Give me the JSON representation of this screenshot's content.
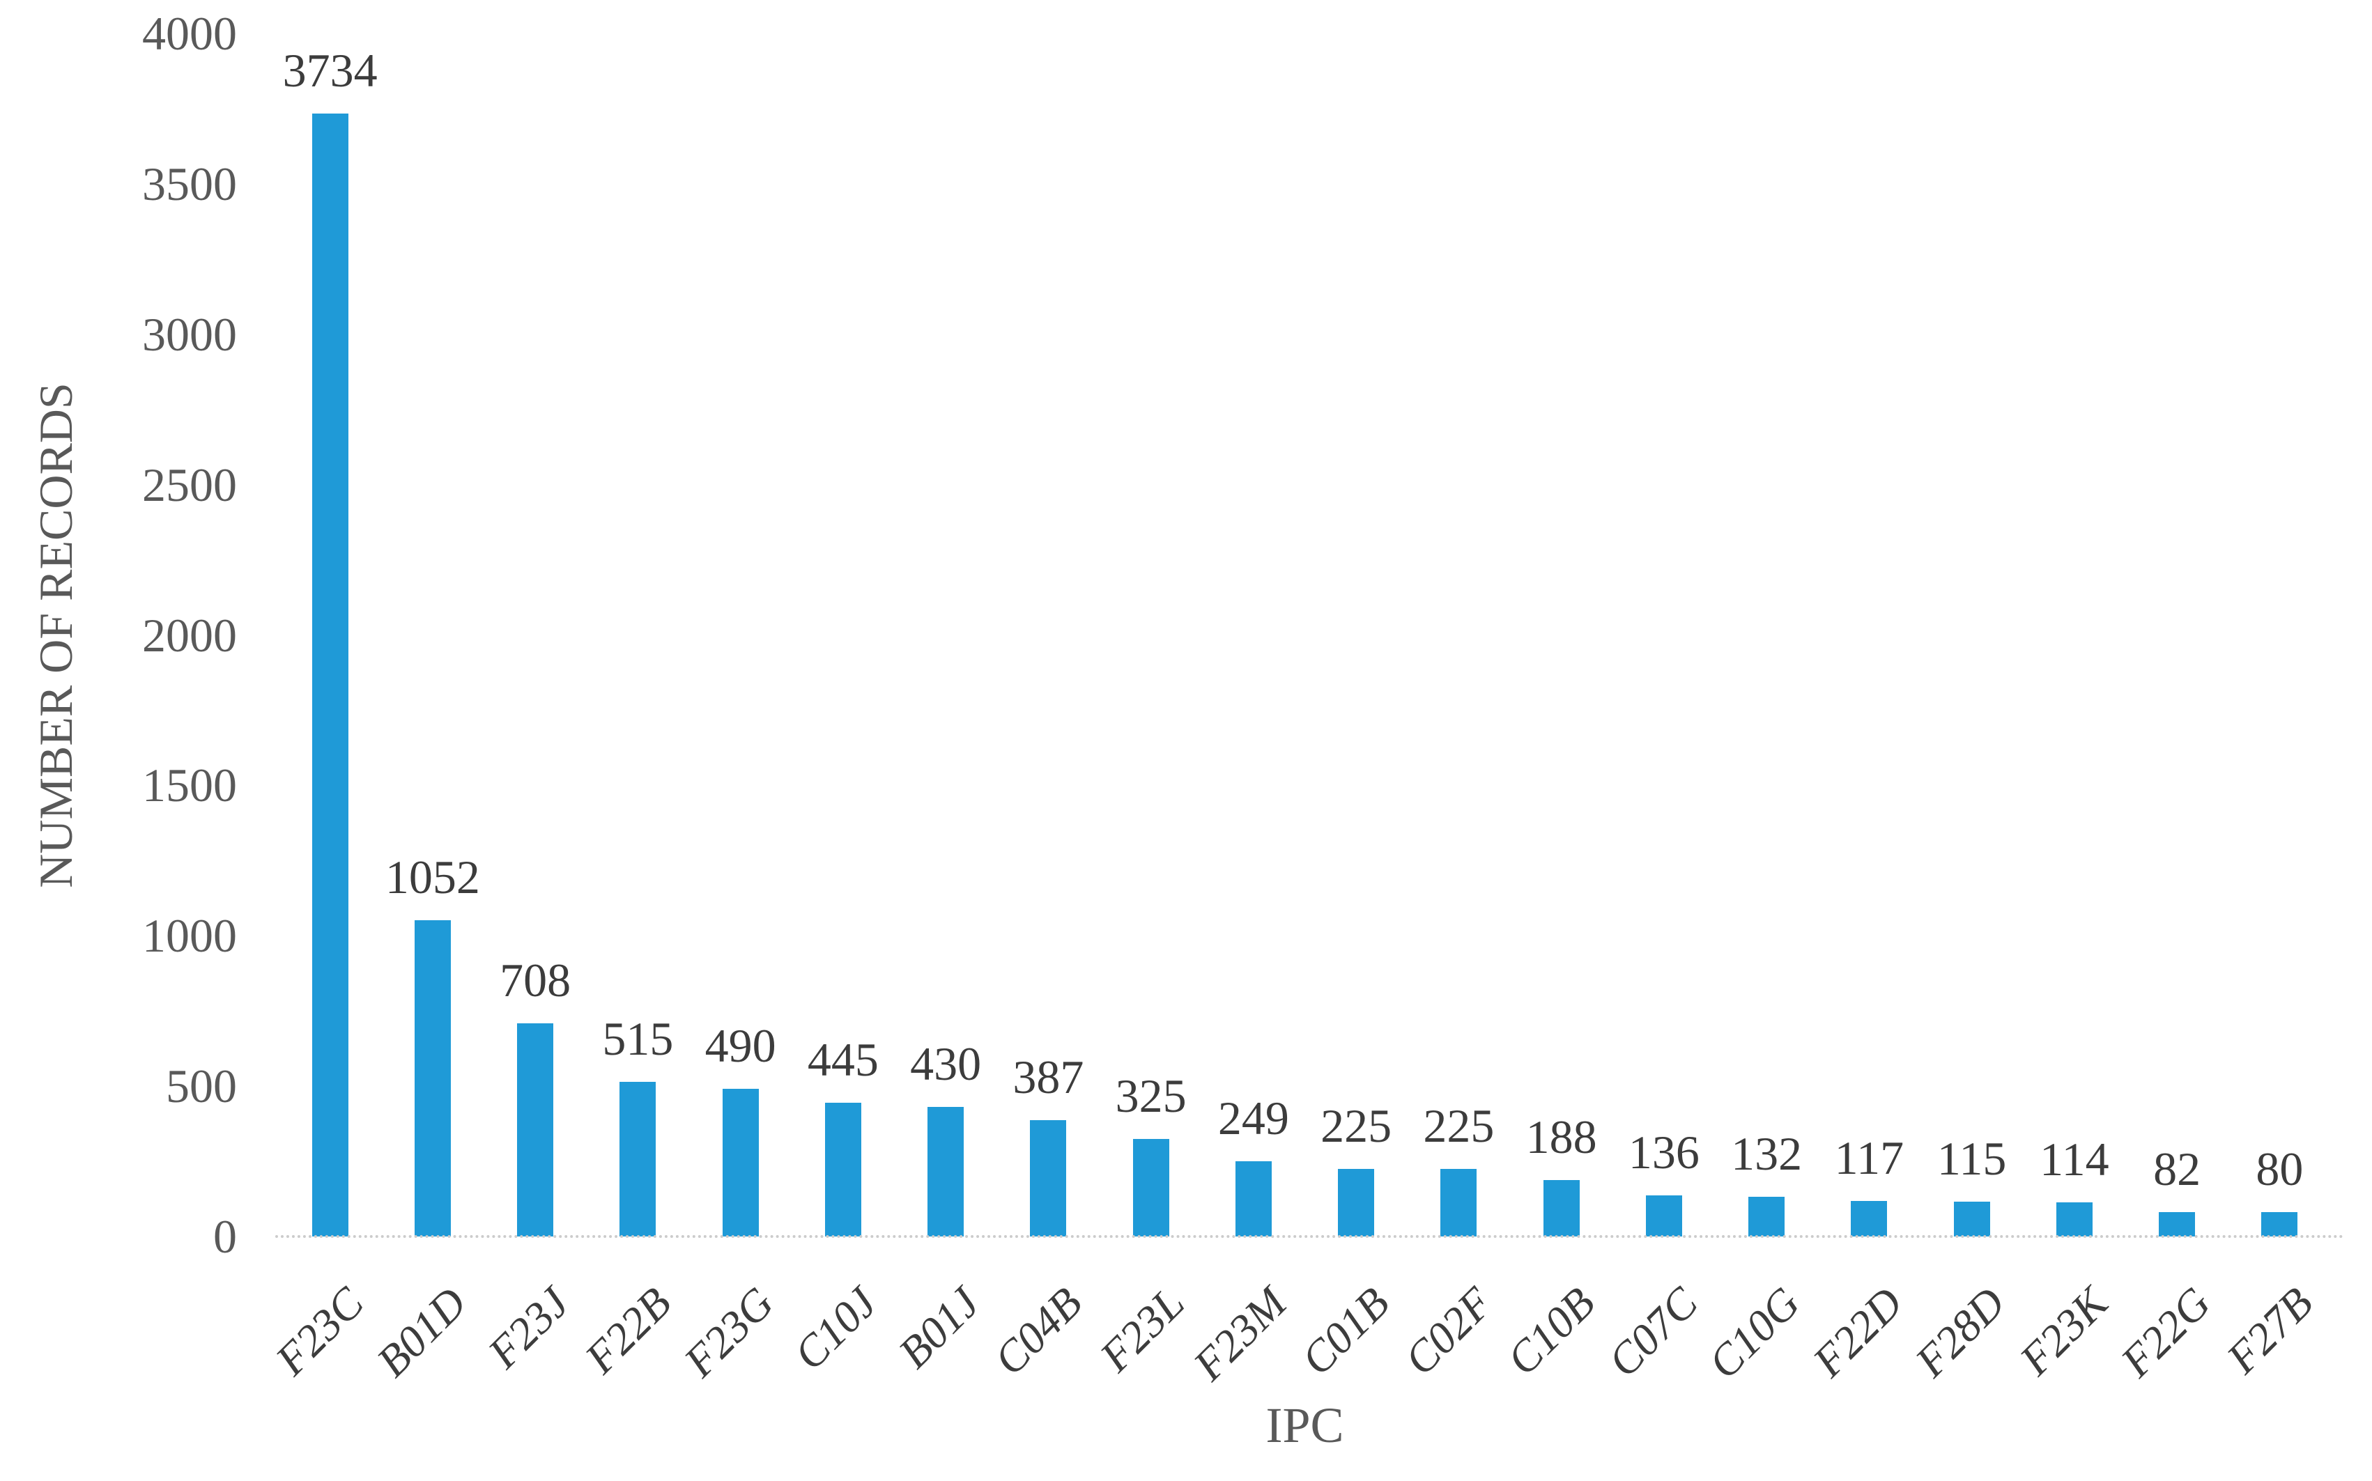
{
  "figure": {
    "background_color": "#ffffff"
  },
  "chart_data": {
    "type": "bar",
    "title": "",
    "xlabel": "IPC",
    "ylabel": "NUMBER OF RECORDS",
    "categories": [
      "F23C",
      "B01D",
      "F23J",
      "F22B",
      "F23G",
      "C10J",
      "B01J",
      "C04B",
      "F23L",
      "F23M",
      "C01B",
      "C02F",
      "C10B",
      "C07C",
      "C10G",
      "F22D",
      "F28D",
      "F23K",
      "F22G",
      "F27B"
    ],
    "values": [
      3734,
      1052,
      708,
      515,
      490,
      445,
      430,
      387,
      325,
      249,
      225,
      225,
      188,
      136,
      132,
      117,
      115,
      114,
      82,
      80
    ],
    "data_labels": [
      "3734",
      "1052",
      "708",
      "515",
      "490",
      "445",
      "430",
      "387",
      "325",
      "249",
      "225",
      "225",
      "188",
      "136",
      "132",
      "117",
      "115",
      "114",
      "82",
      "80"
    ],
    "y_ticks": [
      0,
      500,
      1000,
      1500,
      2000,
      2500,
      3000,
      3500,
      4000
    ],
    "ylim": [
      0,
      4000
    ],
    "grid": "off",
    "legend": "none",
    "bar_color": "#1f9ad7",
    "value_axis_label_color": "#595959",
    "axis_title_color": "#595959",
    "data_label_color": "#3c3c3c",
    "category_label_color": "#3c3c3c",
    "axis_line_color": "#cccccc"
  }
}
